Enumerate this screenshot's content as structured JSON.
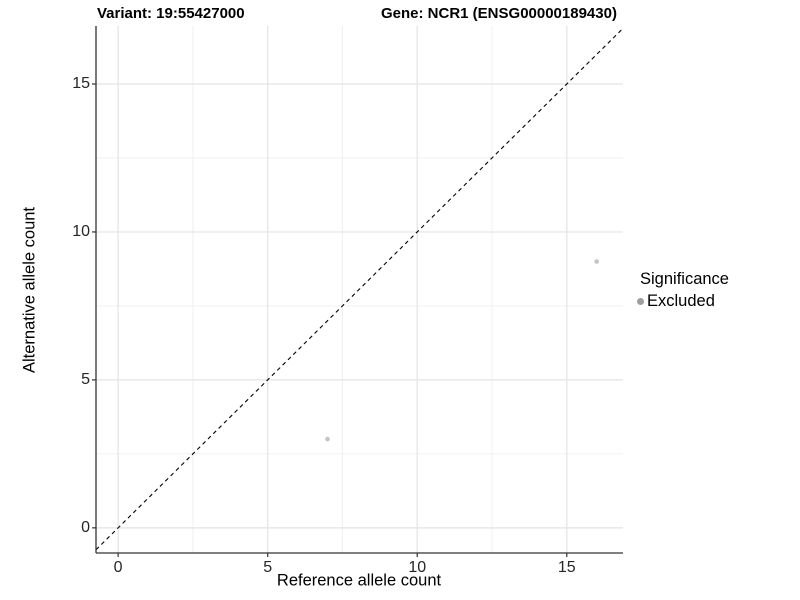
{
  "chart_data": {
    "type": "scatter",
    "title_left": "Variant: 19:55427000",
    "title_right": "Gene: NCR1 (ENSG00000189430)",
    "xlabel": "Reference allele count",
    "ylabel": "Alternative allele count",
    "xlim": [
      -0.74,
      16.88
    ],
    "ylim": [
      -0.85,
      16.96
    ],
    "x_ticks": [
      0,
      5,
      10,
      15
    ],
    "y_ticks": [
      0,
      5,
      10,
      15
    ],
    "x_minor_ticks": [
      2.5,
      7.5,
      12.5
    ],
    "y_minor_ticks": [
      2.5,
      7.5,
      12.5
    ],
    "grid": "major+minor",
    "background": "#ffffff",
    "reference_line": {
      "type": "identity y=x",
      "style": "dashed",
      "color": "#000000"
    },
    "series": [
      {
        "name": "Excluded",
        "color": "#c4c4c4",
        "points": [
          {
            "x": 7,
            "y": 3
          },
          {
            "x": 16,
            "y": 9
          }
        ]
      }
    ],
    "legend": {
      "title": "Significance",
      "position": "right",
      "items": [
        {
          "label": "Excluded",
          "color": "#9e9e9e"
        }
      ]
    }
  },
  "style_colors": {
    "grid_major": "#e3e3e3",
    "grid_minor": "#f0f0f0",
    "axis_line": "#333333",
    "tick_mark": "#333333",
    "tick_label": "#262626"
  }
}
